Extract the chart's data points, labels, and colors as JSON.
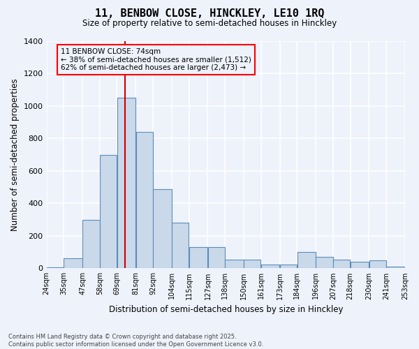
{
  "title_line1": "11, BENBOW CLOSE, HINCKLEY, LE10 1RQ",
  "title_line2": "Size of property relative to semi-detached houses in Hinckley",
  "xlabel": "Distribution of semi-detached houses by size in Hinckley",
  "ylabel": "Number of semi-detached properties",
  "annotation_title": "11 BENBOW CLOSE: 74sqm",
  "annotation_line2": "← 38% of semi-detached houses are smaller (1,512)",
  "annotation_line3": "62% of semi-detached houses are larger (2,473) →",
  "footnote_line1": "Contains HM Land Registry data © Crown copyright and database right 2025.",
  "footnote_line2": "Contains public sector information licensed under the Open Government Licence v3.0.",
  "property_size": 74,
  "bar_color": "#c9d9ea",
  "bar_edge_color": "#5b8db8",
  "vline_color": "#cc0000",
  "background_color": "#eef2fb",
  "grid_color": "#ffffff",
  "bins": [
    24,
    35,
    47,
    58,
    69,
    81,
    92,
    104,
    115,
    127,
    138,
    150,
    161,
    173,
    184,
    196,
    207,
    218,
    230,
    241,
    253
  ],
  "counts": [
    5,
    60,
    300,
    700,
    1050,
    840,
    490,
    280,
    130,
    130,
    55,
    55,
    25,
    25,
    100,
    70,
    55,
    40,
    50,
    10
  ],
  "ylim": [
    0,
    1400
  ],
  "yticks": [
    0,
    200,
    400,
    600,
    800,
    1000,
    1200,
    1400
  ]
}
